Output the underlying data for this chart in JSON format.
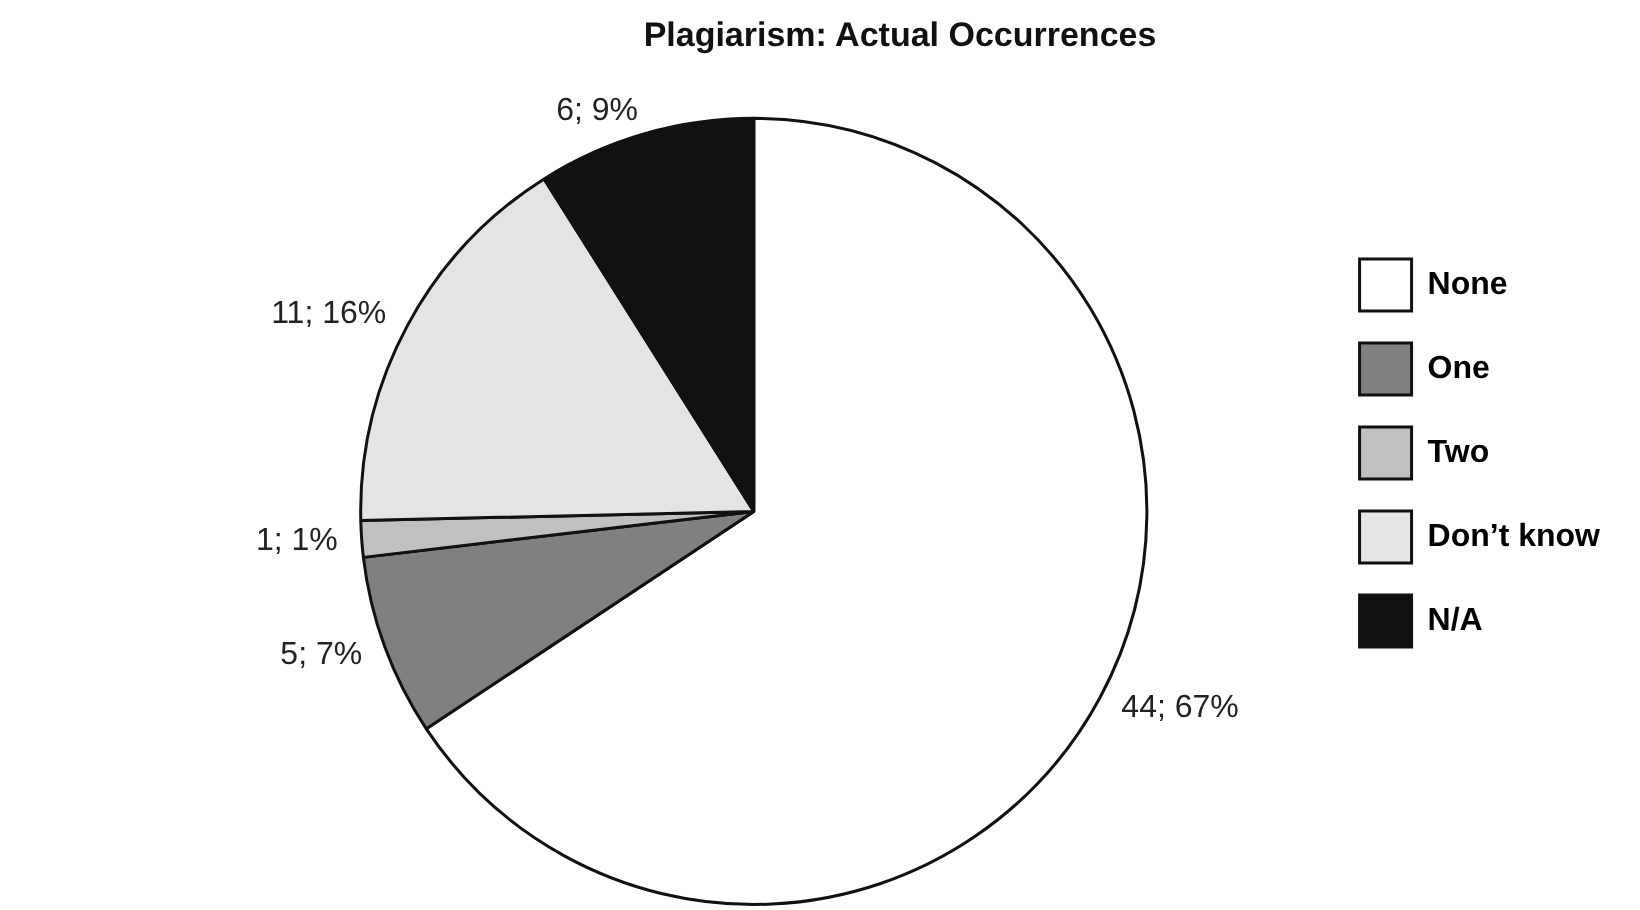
{
  "chart_data": {
    "type": "pie",
    "title": "Plagiarism: Actual Occurrences",
    "categories": [
      "None",
      "One",
      "Two",
      "Don’t know",
      "N/A"
    ],
    "values": [
      44,
      5,
      1,
      11,
      6
    ],
    "colors": [
      "#ffffff",
      "#808080",
      "#c0c0c2",
      "#e4e4e4",
      "#111111"
    ],
    "value_labels": [
      "44; 67%",
      "5; 7%",
      "1; 1%",
      "11; 16%",
      "6; 9%"
    ],
    "legend": "right"
  }
}
